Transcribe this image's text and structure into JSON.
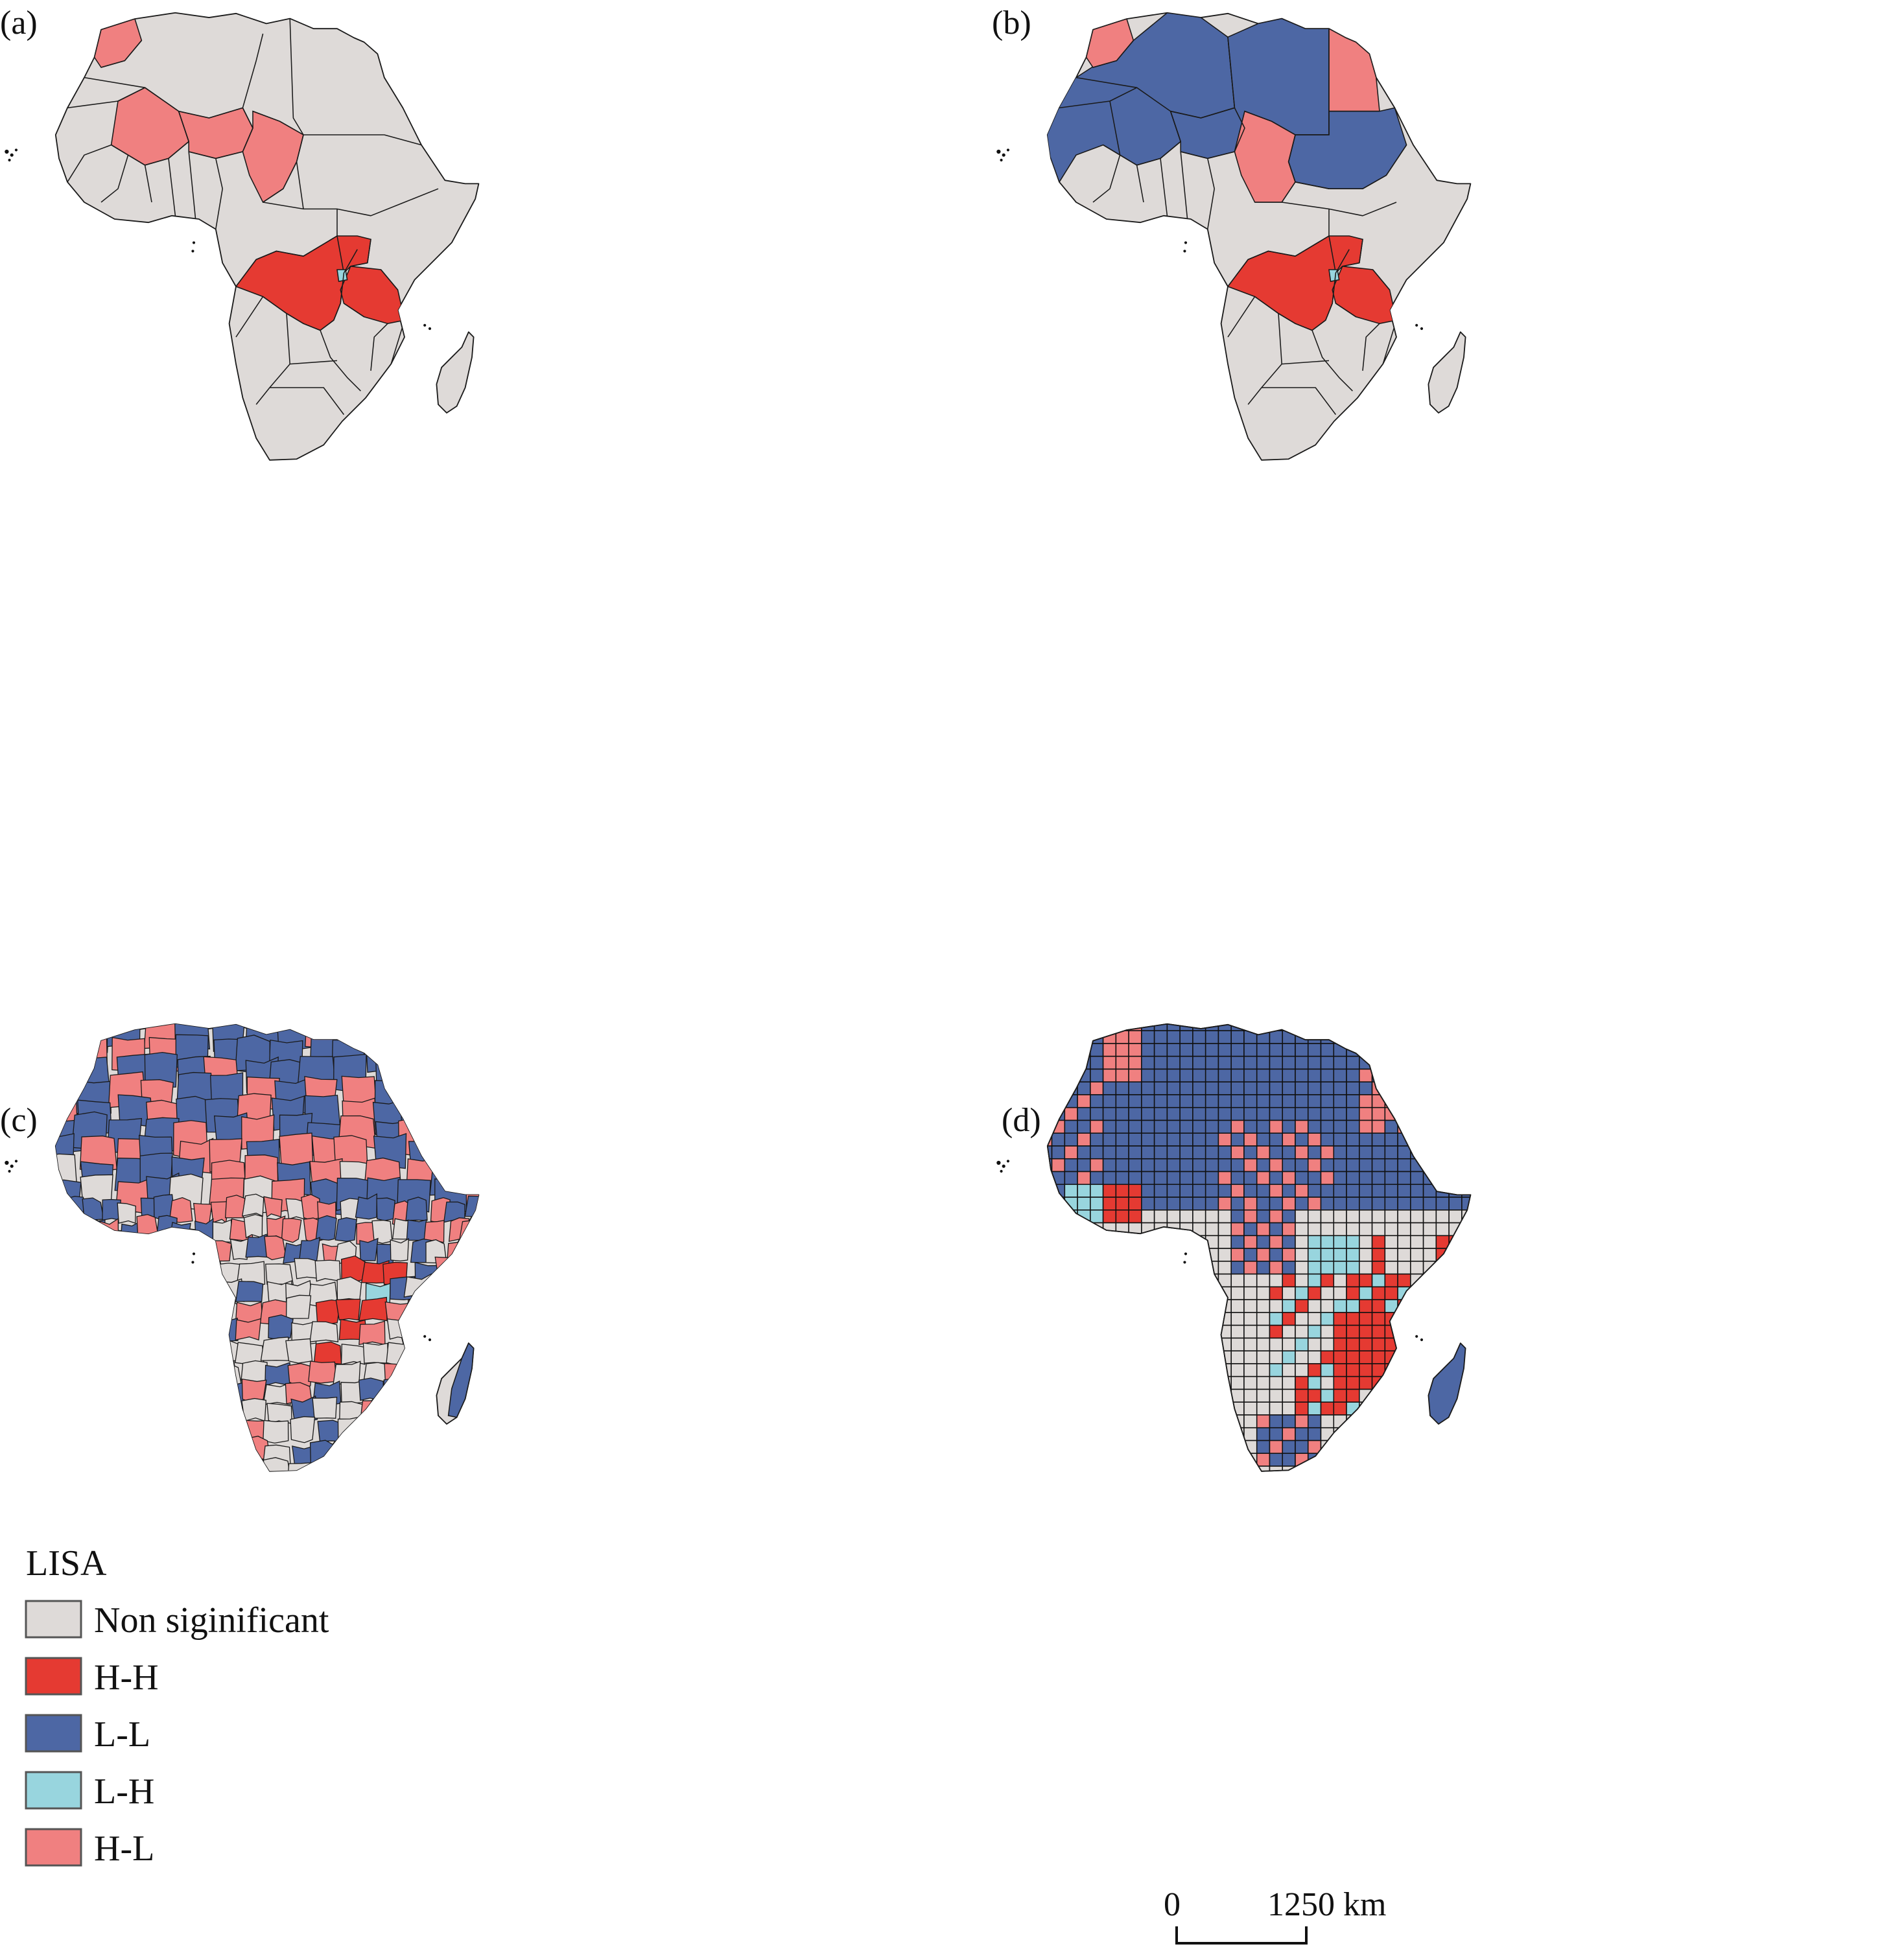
{
  "colors": {
    "non_significant": "#DEDAD8",
    "hh": "#E53A32",
    "ll": "#4D67A4",
    "lh": "#98D5DE",
    "hl": "#F08080"
  },
  "panels": {
    "a": {
      "label": "(a)"
    },
    "b": {
      "label": "(b)"
    },
    "c": {
      "label": "(c)"
    },
    "d": {
      "label": "(d)"
    }
  },
  "legend": {
    "title": "LISA",
    "items": [
      {
        "label": "Non siginificant",
        "color": "#DEDAD8"
      },
      {
        "label": "H-H",
        "color": "#E53A32"
      },
      {
        "label": "L-L",
        "color": "#4D67A4"
      },
      {
        "label": "L-H",
        "color": "#98D5DE"
      },
      {
        "label": "H-L",
        "color": "#F08080"
      }
    ]
  },
  "scale_bar": {
    "start_label": "0",
    "end_label": "1250 km"
  }
}
